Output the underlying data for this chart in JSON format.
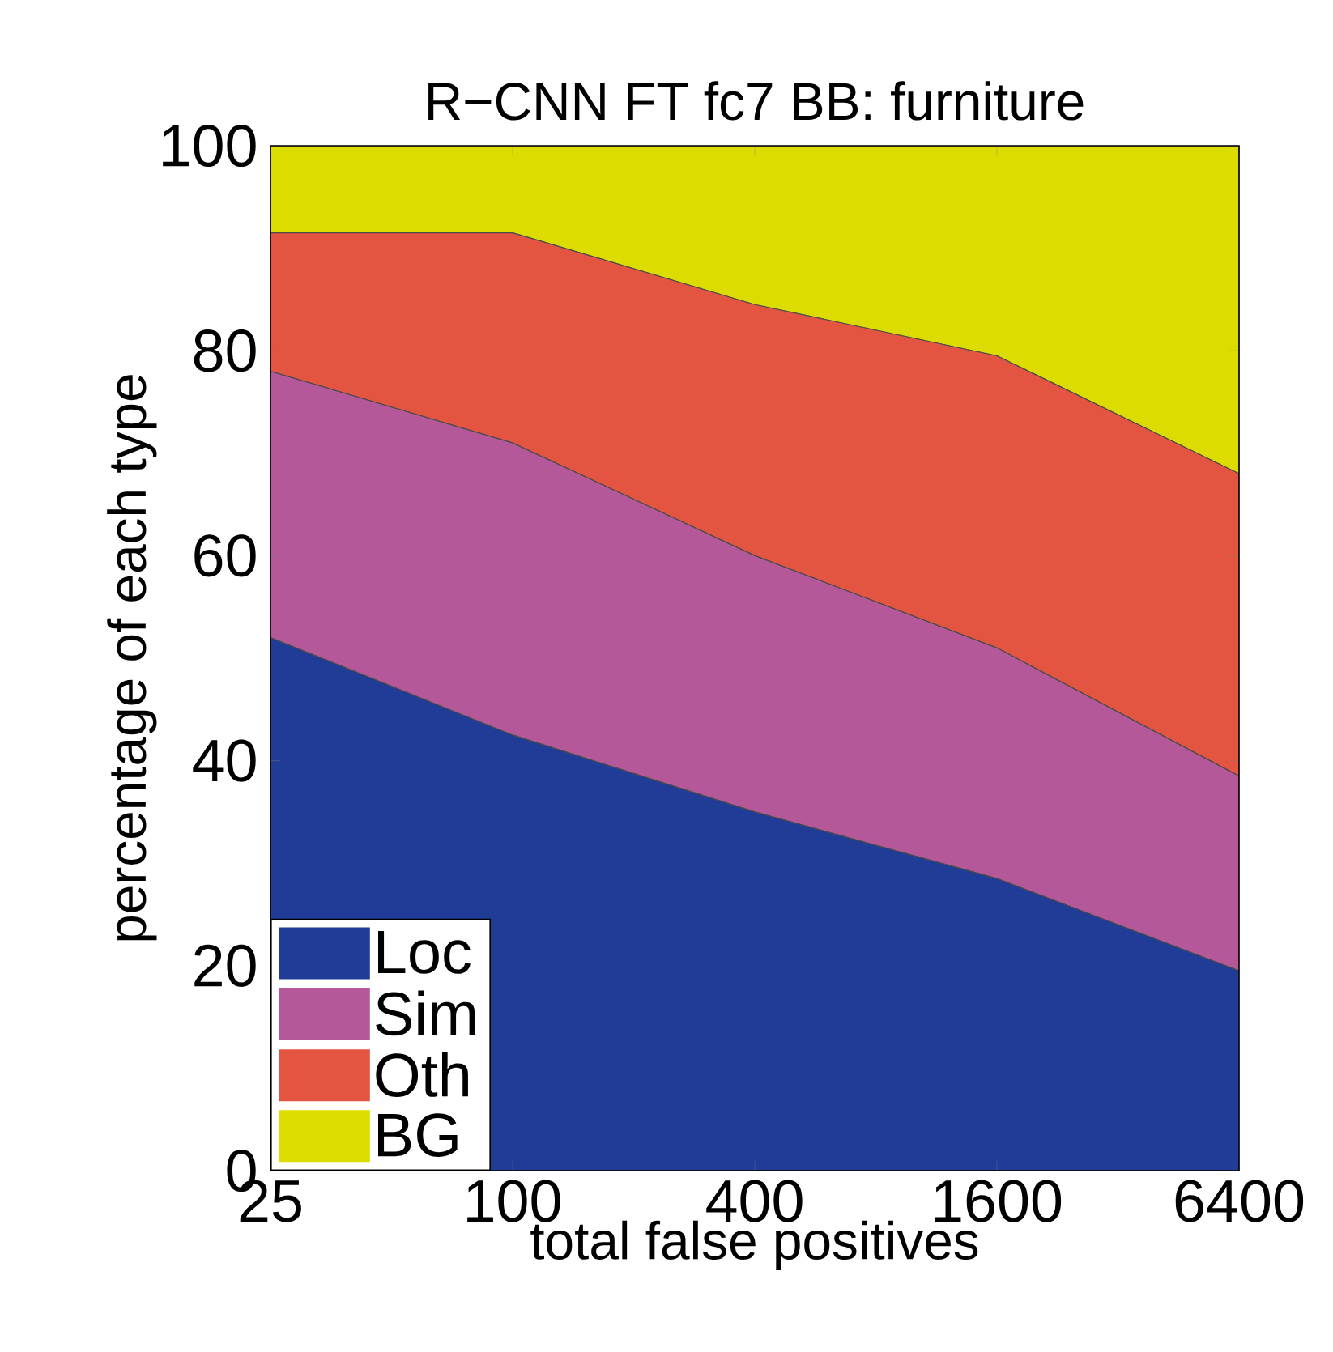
{
  "chart_data": {
    "type": "area",
    "stacked": true,
    "title": "R−CNN FT fc7 BB: furniture",
    "xlabel": "total false positives",
    "ylabel": "percentage of each type",
    "x": [
      25,
      100,
      400,
      1600,
      6400
    ],
    "log": "x",
    "series": [
      {
        "name": "Loc",
        "color": "#213c96",
        "values": [
          52,
          42.5,
          35,
          28.5,
          19.5
        ]
      },
      {
        "name": "Sim",
        "color": "#b5589a",
        "values": [
          26,
          28.5,
          25,
          22.5,
          19
        ]
      },
      {
        "name": "Oth",
        "color": "#e35541",
        "values": [
          13.5,
          20.5,
          24.5,
          28.5,
          29.5
        ]
      },
      {
        "name": "BG",
        "color": "#dcdc00",
        "values": [
          8.5,
          8.5,
          15.5,
          20.5,
          32
        ]
      }
    ],
    "xlim": [
      25,
      6400
    ],
    "xticks": [
      25,
      100,
      400,
      1600,
      6400
    ],
    "ylim": [
      0,
      100
    ],
    "yticks": [
      0,
      20,
      40,
      60,
      80,
      100
    ],
    "legend": "bottom left",
    "grid": false
  }
}
